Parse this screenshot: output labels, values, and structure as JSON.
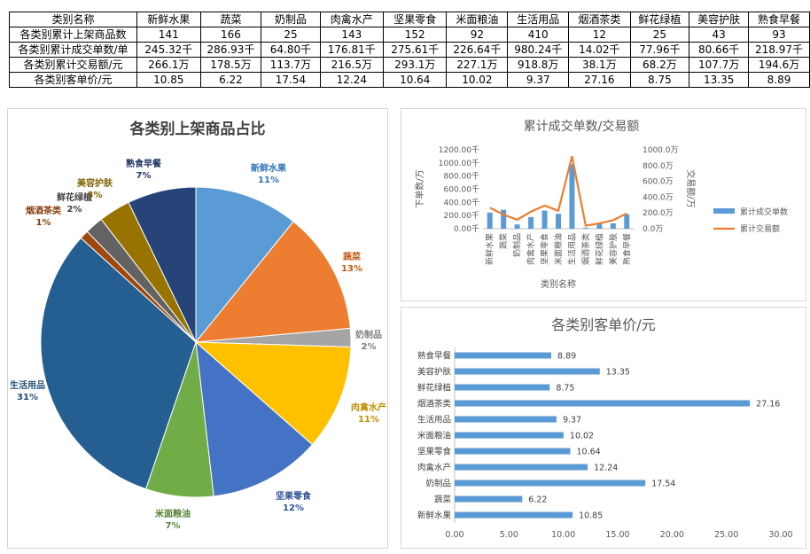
{
  "table": {
    "header": [
      "类别名称",
      "新鲜水果",
      "蔬菜",
      "奶制品",
      "肉禽水产",
      "坚果零食",
      "米面粮油",
      "生活用品",
      "烟酒茶类",
      "鲜花绿植",
      "美容护肤",
      "熟食早餐"
    ],
    "rows": [
      [
        "各类别累计上架商品数",
        "141",
        "166",
        "25",
        "143",
        "152",
        "92",
        "410",
        "12",
        "25",
        "43",
        "93"
      ],
      [
        "各类别累计成交单数/单",
        "245.32千",
        "286.93千",
        "64.80千",
        "176.81千",
        "275.61千",
        "226.64千",
        "980.24千",
        "14.02千",
        "77.96千",
        "80.66千",
        "218.97千"
      ],
      [
        "各类别累计交易额/元",
        "266.1万",
        "178.5万",
        "113.7万",
        "216.5万",
        "293.1万",
        "227.1万",
        "918.8万",
        "38.1万",
        "68.2万",
        "107.7万",
        "194.6万"
      ],
      [
        "各类别客单价/元",
        "10.85",
        "6.22",
        "17.54",
        "12.24",
        "10.64",
        "10.02",
        "9.37",
        "27.16",
        "8.75",
        "13.35",
        "8.89"
      ]
    ]
  },
  "chart_data": [
    {
      "type": "pie",
      "title": "各类别上架商品占比",
      "slices": [
        {
          "label": "新鲜水果",
          "percent": "11%",
          "value": 141,
          "color": "#5b9bd5",
          "label_color": "#2e75b6"
        },
        {
          "label": "蔬菜",
          "percent": "13%",
          "value": 166,
          "color": "#ed7d31",
          "label_color": "#c55a11"
        },
        {
          "label": "奶制品",
          "percent": "2%",
          "value": 25,
          "color": "#a5a5a5",
          "label_color": "#7f7f7f"
        },
        {
          "label": "肉禽水产",
          "percent": "11%",
          "value": 143,
          "color": "#ffc000",
          "label_color": "#bf9000"
        },
        {
          "label": "坚果零食",
          "percent": "12%",
          "value": 152,
          "color": "#4472c4",
          "label_color": "#2f5597"
        },
        {
          "label": "米面粮油",
          "percent": "7%",
          "value": 92,
          "color": "#70ad47",
          "label_color": "#548235"
        },
        {
          "label": "生活用品",
          "percent": "31%",
          "value": 410,
          "color": "#255e91",
          "label_color": "#1f4e79"
        },
        {
          "label": "烟酒茶类",
          "percent": "1%",
          "value": 12,
          "color": "#9e480e",
          "label_color": "#843c0c"
        },
        {
          "label": "鲜花绿植",
          "percent": "2%",
          "value": 25,
          "color": "#636363",
          "label_color": "#404040"
        },
        {
          "label": "美容护肤",
          "percent": "3%",
          "value": 43,
          "color": "#997300",
          "label_color": "#7f6000"
        },
        {
          "label": "熟食早餐",
          "percent": "7%",
          "value": 93,
          "color": "#264478",
          "label_color": "#203864"
        }
      ]
    },
    {
      "type": "bar-line",
      "title": "累计成交单数/交易额",
      "xlabel": "类别名称",
      "ylabel_left": "下单数/万",
      "ylabel_right": "交易额/万",
      "categories": [
        "新鲜水果",
        "蔬菜",
        "奶制品",
        "肉禽水产",
        "坚果零食",
        "米面粮油",
        "生活用品",
        "烟酒茶类",
        "鲜花绿植",
        "美容护肤",
        "熟食早餐"
      ],
      "left_ticks": [
        "0.00千",
        "200.00千",
        "400.00千",
        "600.00千",
        "800.00千",
        "1000.00千",
        "1200.00千"
      ],
      "right_ticks": [
        "0.0万",
        "200.0万",
        "400.0万",
        "600.0万",
        "800.0万",
        "1000.0万"
      ],
      "ylim_left": [
        0,
        1200
      ],
      "ylim_right": [
        0,
        1000
      ],
      "legend": {
        "position": "right"
      },
      "series": [
        {
          "name": "累计成交单数",
          "type": "bar",
          "axis": "left",
          "color": "#5b9bd5",
          "values": [
            245.32,
            286.93,
            64.8,
            176.81,
            275.61,
            226.64,
            980.24,
            14.02,
            77.96,
            80.66,
            218.97
          ]
        },
        {
          "name": "累计交易额",
          "type": "line",
          "axis": "right",
          "color": "#ed7d31",
          "values": [
            266.1,
            178.5,
            113.7,
            216.5,
            293.1,
            227.1,
            918.8,
            38.1,
            68.2,
            107.7,
            194.6
          ]
        }
      ]
    },
    {
      "type": "bar",
      "orientation": "horizontal",
      "title": "各类别客单价/元",
      "color": "#5b9bd5",
      "categories": [
        "熟食早餐",
        "美容护肤",
        "鲜花绿植",
        "烟酒茶类",
        "生活用品",
        "米面粮油",
        "坚果零食",
        "肉禽水产",
        "奶制品",
        "蔬菜",
        "新鲜水果"
      ],
      "values": [
        8.89,
        13.35,
        8.75,
        27.16,
        9.37,
        10.02,
        10.64,
        12.24,
        17.54,
        6.22,
        10.85
      ],
      "value_labels": [
        "8.89",
        "13.35",
        "8.75",
        "27.16",
        "9.37",
        "10.02",
        "10.64",
        "12.24",
        "17.54",
        "6.22",
        "10.85"
      ],
      "x_ticks": [
        "0.00",
        "5.00",
        "10.00",
        "15.00",
        "20.00",
        "25.00",
        "30.00"
      ],
      "xlim": [
        0,
        30
      ]
    }
  ]
}
